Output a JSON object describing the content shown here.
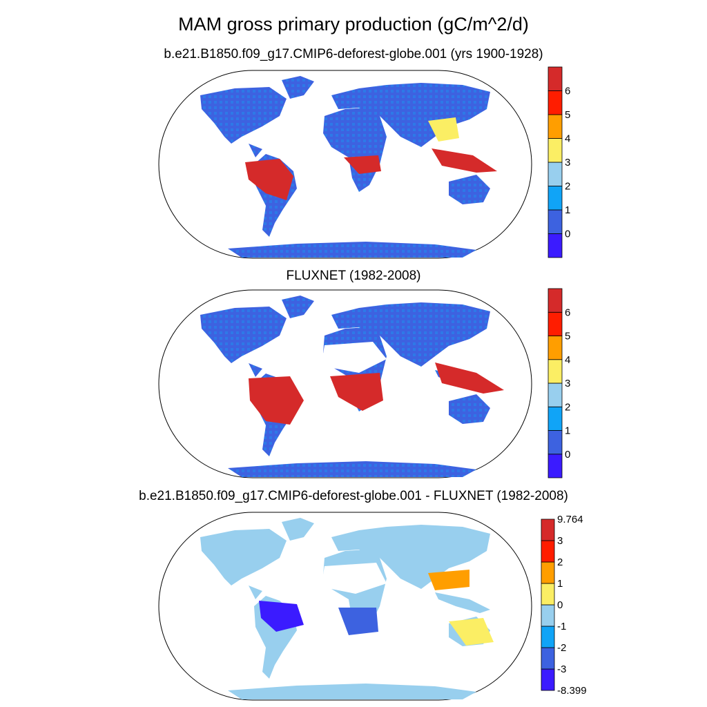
{
  "title": "MAM gross primary production (gC/m^2/d)",
  "panels": [
    {
      "subtitle": "b.e21.B1850.f09_g17.CMIP6-deforest-globe.001 (yrs 1900-1928)",
      "colorbar": {
        "colors": [
          "#3b1bff",
          "#3d62e0",
          "#10a4f7",
          "#98cfee",
          "#fbee64",
          "#ff9e00",
          "#ff1d00",
          "#d52a2a"
        ],
        "labels": [
          "0",
          "1",
          "2",
          "3",
          "4",
          "5",
          "6"
        ]
      }
    },
    {
      "subtitle": "FLUXNET (1982-2008)",
      "colorbar": {
        "colors": [
          "#3b1bff",
          "#3d62e0",
          "#10a4f7",
          "#98cfee",
          "#fbee64",
          "#ff9e00",
          "#ff1d00",
          "#d52a2a"
        ],
        "labels": [
          "0",
          "1",
          "2",
          "3",
          "4",
          "5",
          "6"
        ]
      }
    },
    {
      "subtitle": "b.e21.B1850.f09_g17.CMIP6-deforest-globe.001 - FLUXNET (1982-2008)",
      "colorbar": {
        "colors": [
          "#3b1bff",
          "#3d62e0",
          "#10a4f7",
          "#98cfee",
          "#fbee64",
          "#ff9e00",
          "#ff1d00",
          "#d52a2a"
        ],
        "labels": [
          "9.764",
          "3",
          "2",
          "1",
          "0",
          "-1",
          "-2",
          "-3",
          "-8.399"
        ]
      }
    }
  ]
}
